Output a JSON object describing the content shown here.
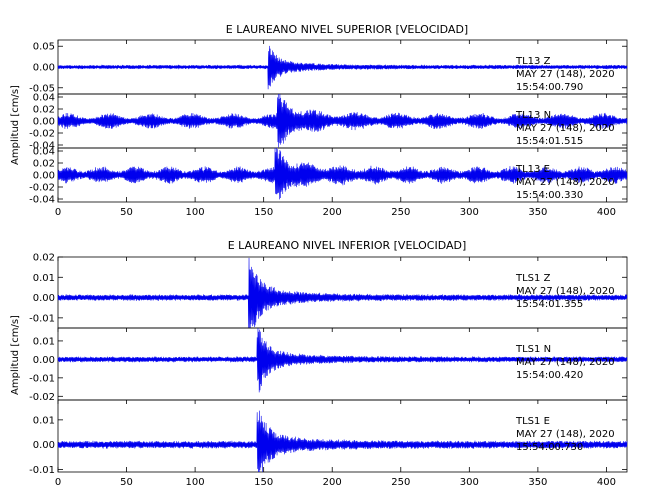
{
  "chart_data": [
    {
      "type": "line",
      "title": "E LAUREANO NIVEL SUPERIOR [VELOCIDAD]",
      "ylabel": "Amplitud [cm/s]",
      "xlim": [
        0,
        415
      ],
      "x_ticks": [
        "0",
        "50",
        "100",
        "150",
        "200",
        "250",
        "300",
        "350",
        "400"
      ],
      "color": "#0000ee",
      "traces": [
        {
          "label": [
            "TL13   Z",
            "MAY 27 (148), 2020",
            "15:54:00.790"
          ],
          "ylim": [
            -0.065,
            0.065
          ],
          "y_ticks": [
            "-0.05",
            "0.00",
            "0.05"
          ],
          "onset_s": 153,
          "peak": 0.045,
          "noise": 0.004,
          "decay_s": 6,
          "osc_period_s": 0,
          "osc_amp": 0
        },
        {
          "label": [
            "TL13   N",
            "MAY 27 (148), 2020",
            "15:54:01.515"
          ],
          "ylim": [
            -0.045,
            0.045
          ],
          "y_ticks": [
            "0.04",
            "0.02",
            "0.00",
            "-0.02",
            "-0.04"
          ],
          "onset_s": 160,
          "peak": 0.035,
          "noise": 0.004,
          "decay_s": 8,
          "osc_period_s": 30,
          "osc_amp": 0.008
        },
        {
          "label": [
            "TL13   E",
            "MAY 27 (148), 2020",
            "15:54:00.330"
          ],
          "ylim": [
            -0.045,
            0.045
          ],
          "y_ticks": [
            "0.04",
            "0.02",
            "0.00",
            "-0.02",
            "-0.04"
          ],
          "onset_s": 158,
          "peak": 0.035,
          "noise": 0.005,
          "decay_s": 8,
          "osc_period_s": 25,
          "osc_amp": 0.008
        }
      ]
    },
    {
      "type": "line",
      "title": "E LAUREANO NIVEL INFERIOR [VELOCIDAD]",
      "ylabel": "Amplitud [cm/s]",
      "xlim": [
        0,
        415
      ],
      "x_ticks": [
        "0",
        "50",
        "100",
        "150",
        "200",
        "250",
        "300",
        "350",
        "400"
      ],
      "color": "#0000ee",
      "traces": [
        {
          "label": [
            "TLS1   Z",
            "MAY 27 (148), 2020",
            "15:54:01.355"
          ],
          "ylim": [
            -0.015,
            0.02
          ],
          "y_ticks": [
            "0.02",
            "0.01",
            "0.00",
            "-0.01"
          ],
          "onset_s": 139,
          "peak": 0.019,
          "noise": 0.0012,
          "decay_s": 6,
          "osc_period_s": 0,
          "osc_amp": 0
        },
        {
          "label": [
            "TLS1   N",
            "MAY 27 (148), 2020",
            "15:54:00.420"
          ],
          "ylim": [
            -0.022,
            0.017
          ],
          "y_ticks": [
            "0.01",
            "0.00",
            "-0.01",
            "-0.02"
          ],
          "onset_s": 145,
          "peak": 0.016,
          "noise": 0.0012,
          "decay_s": 6,
          "osc_period_s": 0,
          "osc_amp": 0
        },
        {
          "label": [
            "TLS1   E",
            "MAY 27 (148), 2020",
            "15:54:00.730"
          ],
          "ylim": [
            -0.011,
            0.018
          ],
          "y_ticks": [
            "0.01",
            "0.00",
            "-0.01"
          ],
          "onset_s": 145,
          "peak": 0.012,
          "noise": 0.0012,
          "decay_s": 7,
          "osc_period_s": 0,
          "osc_amp": 0
        }
      ]
    }
  ]
}
